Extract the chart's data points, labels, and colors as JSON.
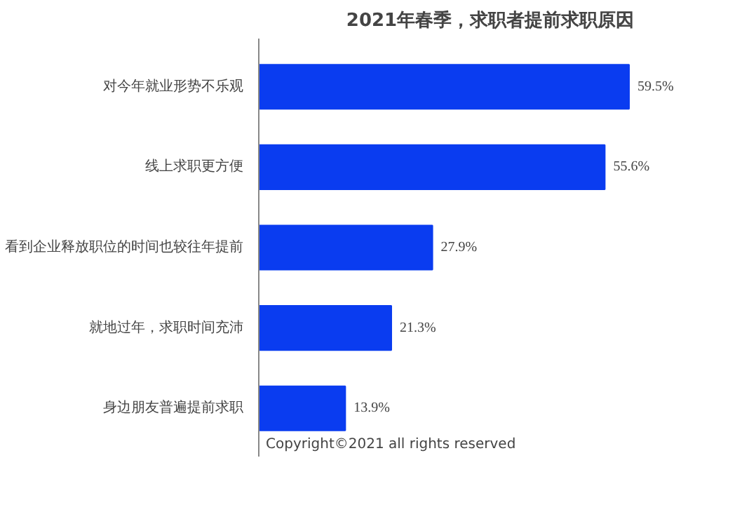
{
  "chart_data": {
    "type": "bar",
    "orientation": "horizontal",
    "title": "2021年春季，求职者提前求职原因",
    "categories": [
      "对今年就业形势不乐观",
      "线上求职更方便",
      "看到企业释放职位的时间也较往年提前",
      "就地过年，求职时间充沛",
      "身边朋友普遍提前求职"
    ],
    "values": [
      59.5,
      55.6,
      27.9,
      21.3,
      13.9
    ],
    "value_labels": [
      "59.5%",
      "55.6%",
      "27.9%",
      "21.3%",
      "13.9%"
    ],
    "color": "#0a3cf0",
    "annotations": [
      "Copyright©2021 all rights reserved"
    ]
  }
}
